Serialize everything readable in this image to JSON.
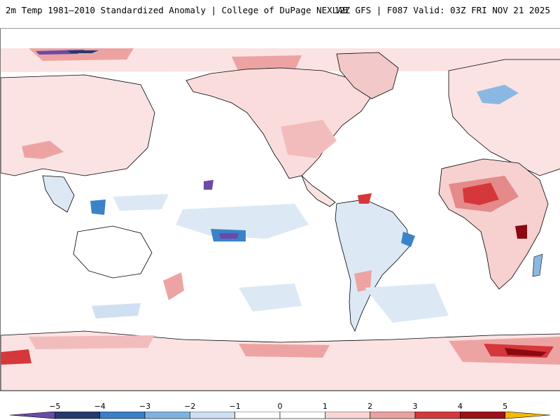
{
  "header": {
    "left_title": "2m Temp 1981–2010 Standardized Anomaly | College of DuPage NEXLAB",
    "right_title": "12Z GFS | F087 Valid: 03Z FRI NOV 21 2025"
  },
  "map": {
    "ocean_color": "#ffffff",
    "coastline_color": "#000000",
    "warm_light": "#f8d7d7",
    "warm_mid": "#eea3a3",
    "warm_strong": "#d6373a",
    "warm_extreme": "#8a0a10",
    "cool_light": "#cfe0f1",
    "cool_mid": "#8bb8e2",
    "cool_strong": "#3b83c8",
    "cool_extreme": "#6b4aa8"
  },
  "colorbar": {
    "min": -6,
    "max": 6,
    "tick_labels": [
      "−5",
      "−4",
      "−3",
      "−2",
      "−1",
      "0",
      "1",
      "2",
      "3",
      "4",
      "5"
    ],
    "tick_values": [
      -5,
      -4,
      -3,
      -2,
      -1,
      0,
      1,
      2,
      3,
      4,
      5
    ],
    "bins": [
      {
        "from": -6,
        "to": -5,
        "color": "#6b4aa8"
      },
      {
        "from": -5,
        "to": -4,
        "color": "#253a6e"
      },
      {
        "from": -4,
        "to": -3,
        "color": "#3a80c6"
      },
      {
        "from": -3,
        "to": -2,
        "color": "#7fb3df"
      },
      {
        "from": -2,
        "to": -1,
        "color": "#cddff0"
      },
      {
        "from": -1,
        "to": 0,
        "color": "#ffffff"
      },
      {
        "from": 0,
        "to": 1,
        "color": "#ffffff"
      },
      {
        "from": 1,
        "to": 2,
        "color": "#f8d6d6"
      },
      {
        "from": 2,
        "to": 3,
        "color": "#e9a0a0"
      },
      {
        "from": 3,
        "to": 4,
        "color": "#d23a3c"
      },
      {
        "from": 4,
        "to": 5,
        "color": "#9c1218"
      },
      {
        "from": 5,
        "to": 6,
        "color": "#f5b800"
      }
    ]
  }
}
